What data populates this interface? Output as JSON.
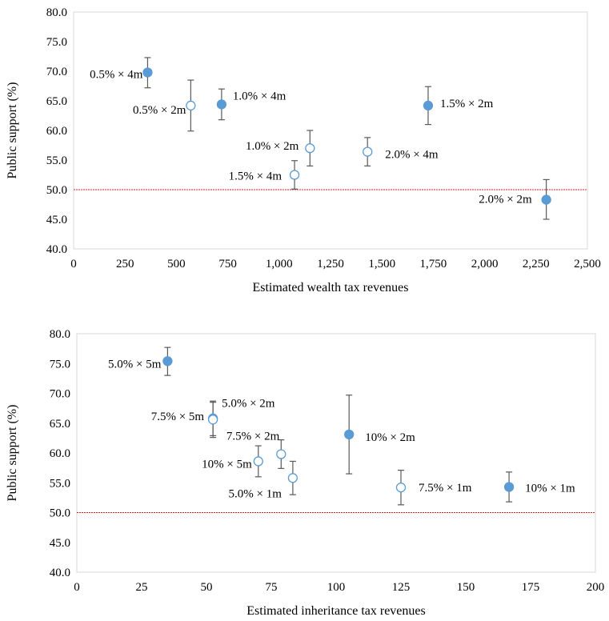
{
  "chart_data": [
    {
      "type": "scatter",
      "xlabel": "Estimated wealth tax revenues",
      "ylabel": "Public support (%)",
      "xlim": [
        0,
        2500
      ],
      "ylim": [
        40,
        80
      ],
      "x_ticks": [
        "0",
        "250",
        "500",
        "750",
        "1,000",
        "1,250",
        "1,500",
        "1,750",
        "2,000",
        "2,250",
        "2,500"
      ],
      "y_ticks": [
        "40.0",
        "45.0",
        "50.0",
        "55.0",
        "60.0",
        "65.0",
        "70.0",
        "75.0",
        "80.0"
      ],
      "reference_line": 50,
      "reference_color": "#d62020",
      "filled_color": "#5b9bd5",
      "open_color": "#ffffff",
      "points": [
        {
          "label": "0.5% × 4m",
          "x": 360,
          "y": 69.8,
          "lo": 67.2,
          "hi": 72.3,
          "filled": true
        },
        {
          "label": "0.5% × 2m",
          "x": 570,
          "y": 64.2,
          "lo": 59.9,
          "hi": 68.5,
          "filled": false
        },
        {
          "label": "1.0% × 4m",
          "x": 720,
          "y": 64.4,
          "lo": 61.8,
          "hi": 67.0,
          "filled": true
        },
        {
          "label": "1.5% × 4m",
          "x": 1075,
          "y": 52.5,
          "lo": 50.1,
          "hi": 54.9,
          "filled": false
        },
        {
          "label": "1.0% × 2m",
          "x": 1150,
          "y": 57.0,
          "lo": 54.0,
          "hi": 60.0,
          "filled": false
        },
        {
          "label": "2.0% × 4m",
          "x": 1430,
          "y": 56.4,
          "lo": 54.0,
          "hi": 58.8,
          "filled": false
        },
        {
          "label": "1.5% × 2m",
          "x": 1725,
          "y": 64.2,
          "lo": 61.0,
          "hi": 67.4,
          "filled": true
        },
        {
          "label": "2.0% × 2m",
          "x": 2300,
          "y": 48.3,
          "lo": 45.0,
          "hi": 51.7,
          "filled": true
        }
      ]
    },
    {
      "type": "scatter",
      "xlabel": "Estimated inheritance tax revenues",
      "ylabel": "Public support (%)",
      "xlim": [
        0,
        200
      ],
      "ylim": [
        40,
        80
      ],
      "x_ticks": [
        "0",
        "25",
        "50",
        "75",
        "100",
        "125",
        "150",
        "175",
        "200"
      ],
      "y_ticks": [
        "40.0",
        "45.0",
        "50.0",
        "55.0",
        "60.0",
        "65.0",
        "70.0",
        "75.0",
        "80.0"
      ],
      "reference_line": 50,
      "reference_color": "#d62020",
      "filled_color": "#5b9bd5",
      "open_color": "#ffffff",
      "points": [
        {
          "label": "5.0% × 5m",
          "x": 35,
          "y": 75.4,
          "lo": 73.0,
          "hi": 77.7,
          "filled": true
        },
        {
          "label": "7.5% × 5m",
          "x": 52.5,
          "y": 65.8,
          "lo": 62.9,
          "hi": 68.7,
          "filled": true
        },
        {
          "label": "5.0% × 2m",
          "x": 52.5,
          "y": 65.6,
          "lo": 62.6,
          "hi": 68.5,
          "filled": false
        },
        {
          "label": "10% × 5m",
          "x": 70,
          "y": 58.6,
          "lo": 56.0,
          "hi": 61.2,
          "filled": false
        },
        {
          "label": "7.5% × 2m",
          "x": 78.8,
          "y": 59.8,
          "lo": 57.4,
          "hi": 62.2,
          "filled": false
        },
        {
          "label": "5.0% × 1m",
          "x": 83.3,
          "y": 55.8,
          "lo": 53.0,
          "hi": 58.6,
          "filled": false
        },
        {
          "label": "10% × 2m",
          "x": 105,
          "y": 63.1,
          "lo": 56.5,
          "hi": 69.7,
          "filled": true
        },
        {
          "label": "7.5% × 1m",
          "x": 125,
          "y": 54.2,
          "lo": 51.3,
          "hi": 57.1,
          "filled": false
        },
        {
          "label": "10% × 1m",
          "x": 166.7,
          "y": 54.3,
          "lo": 51.8,
          "hi": 56.8,
          "filled": true
        }
      ]
    }
  ]
}
